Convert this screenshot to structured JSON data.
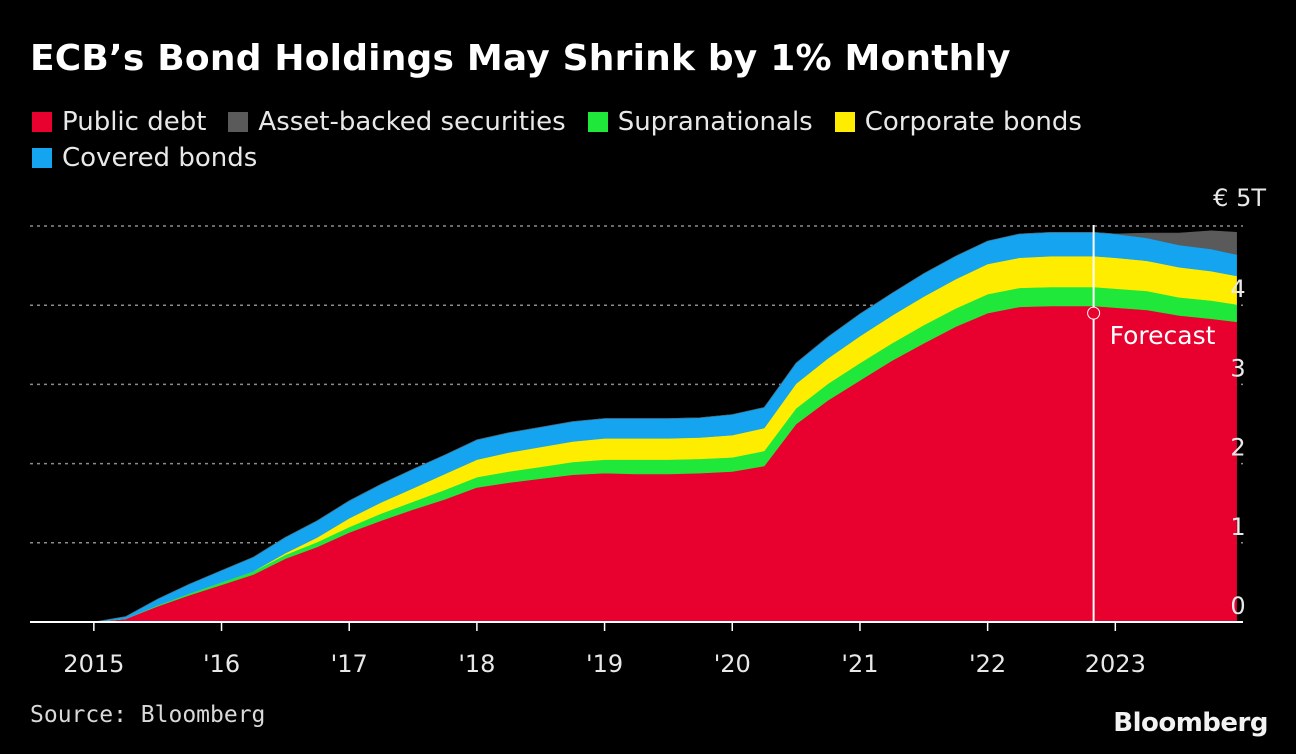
{
  "title": "ECB’s Bond Holdings May Shrink by 1% Monthly",
  "source": "Source: Bloomberg",
  "brand": "Bloomberg",
  "chart_data": {
    "type": "area",
    "stacked": true,
    "title": "ECB’s Bond Holdings May Shrink by 1% Monthly",
    "y_unit_label": "€ 5T",
    "ylim": [
      0,
      5
    ],
    "y_ticks": [
      "0",
      "1",
      "2",
      "3",
      "4"
    ],
    "xlim": [
      2014.5,
      2024.0
    ],
    "x_ticks": [
      {
        "value": 2015,
        "label": "2015"
      },
      {
        "value": 2016,
        "label": "'16"
      },
      {
        "value": 2017,
        "label": "'17"
      },
      {
        "value": 2018,
        "label": "'18"
      },
      {
        "value": 2019,
        "label": "'19"
      },
      {
        "value": 2020,
        "label": "'20"
      },
      {
        "value": 2021,
        "label": "'21"
      },
      {
        "value": 2022,
        "label": "'22"
      },
      {
        "value": 2023,
        "label": "2023"
      }
    ],
    "grid": true,
    "legend_position": "top",
    "annotation": {
      "label": "Forecast",
      "x": 2022.83,
      "y": 3.9
    },
    "x": [
      2015.0,
      2015.25,
      2015.5,
      2015.75,
      2016.0,
      2016.25,
      2016.5,
      2016.75,
      2017.0,
      2017.25,
      2017.5,
      2017.75,
      2018.0,
      2018.25,
      2018.5,
      2018.75,
      2019.0,
      2019.25,
      2019.5,
      2019.75,
      2020.0,
      2020.25,
      2020.5,
      2020.75,
      2021.0,
      2021.25,
      2021.5,
      2021.75,
      2022.0,
      2022.25,
      2022.5,
      2022.83,
      2023.0,
      2023.25,
      2023.5,
      2023.75,
      2023.95
    ],
    "series": [
      {
        "name": "Public debt",
        "color": "#e8002e",
        "values": [
          0.0,
          0.04,
          0.2,
          0.34,
          0.47,
          0.6,
          0.8,
          0.95,
          1.13,
          1.28,
          1.42,
          1.55,
          1.7,
          1.76,
          1.81,
          1.86,
          1.88,
          1.87,
          1.87,
          1.88,
          1.9,
          1.97,
          2.5,
          2.8,
          3.05,
          3.3,
          3.52,
          3.73,
          3.9,
          3.98,
          3.99,
          3.99,
          3.97,
          3.94,
          3.87,
          3.83,
          3.79
        ]
      },
      {
        "name": "Supranationals",
        "color": "#20e83a",
        "values": [
          0.0,
          0.0,
          0.01,
          0.02,
          0.03,
          0.04,
          0.05,
          0.06,
          0.07,
          0.09,
          0.1,
          0.12,
          0.13,
          0.14,
          0.15,
          0.16,
          0.17,
          0.18,
          0.18,
          0.18,
          0.18,
          0.19,
          0.2,
          0.21,
          0.22,
          0.22,
          0.23,
          0.23,
          0.24,
          0.24,
          0.24,
          0.24,
          0.24,
          0.24,
          0.23,
          0.23,
          0.22
        ]
      },
      {
        "name": "Corporate bonds",
        "color": "#ffed00",
        "values": [
          0.0,
          0.0,
          0.0,
          0.0,
          0.0,
          0.0,
          0.02,
          0.06,
          0.11,
          0.14,
          0.17,
          0.2,
          0.22,
          0.24,
          0.25,
          0.26,
          0.27,
          0.27,
          0.27,
          0.27,
          0.28,
          0.29,
          0.31,
          0.32,
          0.34,
          0.35,
          0.36,
          0.37,
          0.38,
          0.38,
          0.39,
          0.39,
          0.39,
          0.38,
          0.38,
          0.37,
          0.36
        ]
      },
      {
        "name": "Covered bonds",
        "color": "#14a4f0",
        "values": [
          0.0,
          0.03,
          0.08,
          0.12,
          0.15,
          0.18,
          0.2,
          0.21,
          0.22,
          0.23,
          0.24,
          0.24,
          0.25,
          0.25,
          0.25,
          0.25,
          0.25,
          0.25,
          0.25,
          0.25,
          0.26,
          0.26,
          0.26,
          0.27,
          0.28,
          0.28,
          0.29,
          0.29,
          0.29,
          0.3,
          0.3,
          0.3,
          0.3,
          0.29,
          0.28,
          0.28,
          0.27
        ]
      },
      {
        "name": "Asset-backed securities",
        "color": "#5a5a5a",
        "values": [
          0.0,
          0.0,
          0.0,
          0.0,
          0.0,
          0.0,
          0.0,
          0.0,
          0.0,
          0.0,
          0.0,
          0.0,
          0.0,
          0.0,
          0.0,
          0.0,
          0.0,
          0.0,
          0.0,
          0.0,
          0.0,
          0.0,
          0.0,
          0.0,
          0.0,
          0.0,
          0.0,
          0.0,
          0.0,
          0.0,
          0.0,
          0.0,
          0.0,
          0.06,
          0.15,
          0.23,
          0.28
        ]
      }
    ],
    "legend": [
      {
        "label": "Public debt",
        "color": "#e8002e"
      },
      {
        "label": "Asset-backed securities",
        "color": "#5a5a5a"
      },
      {
        "label": "Supranationals",
        "color": "#20e83a"
      },
      {
        "label": "Corporate bonds",
        "color": "#ffed00"
      },
      {
        "label": "Covered bonds",
        "color": "#14a4f0"
      }
    ]
  }
}
